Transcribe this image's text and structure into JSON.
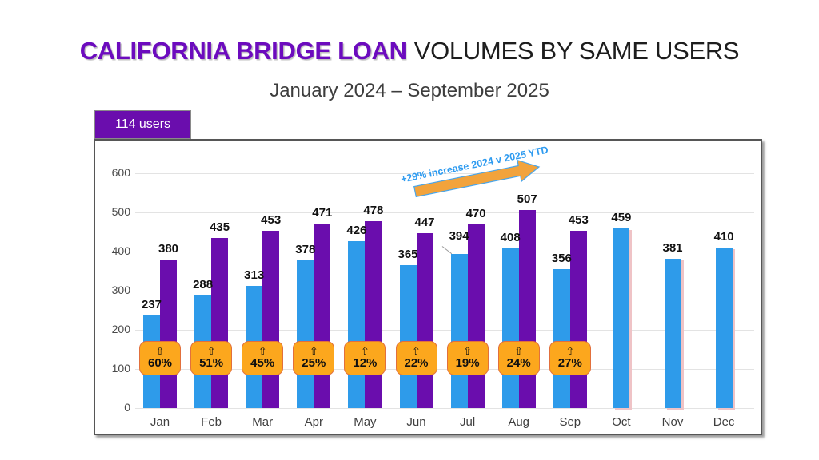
{
  "header": {
    "title_highlight": "CALIFORNIA BRIDGE LOAN",
    "title_rest": "VOLUMES BY SAME USERS",
    "subtitle": "January 2024 – September 2025",
    "users_badge": "114 users"
  },
  "annotation": {
    "text": "+29% increase 2024 v 2025 YTD"
  },
  "icons": {
    "up_arrow": "⇧"
  },
  "colors": {
    "title_purple": "#6C0BBE",
    "bar_blue": "#2E9BEA",
    "bar_purple": "#6A0DAD",
    "badge_purple": "#6A0DAD",
    "pct_badge_fill": "#FCA71D",
    "pct_badge_border": "#E2703C",
    "annotation_blue": "#2E9BF0",
    "arrow_fill": "#F2A33C",
    "arrow_outline": "#4DA6E8",
    "bar_shadow_pink": "#EFC3C6"
  },
  "chart_data": {
    "type": "bar",
    "title": "California bridge loan volumes by same users",
    "categories": [
      "Jan",
      "Feb",
      "Mar",
      "Apr",
      "May",
      "Jun",
      "Jul",
      "Aug",
      "Sep",
      "Oct",
      "Nov",
      "Dec"
    ],
    "series": [
      {
        "name": "2024",
        "color_key": "bar_blue",
        "values": [
          237,
          288,
          313,
          378,
          426,
          365,
          394,
          408,
          356,
          459,
          381,
          410
        ]
      },
      {
        "name": "2025",
        "color_key": "bar_purple",
        "values": [
          380,
          435,
          453,
          471,
          478,
          447,
          470,
          507,
          453,
          null,
          null,
          null
        ]
      }
    ],
    "pct_increase_labels": [
      "60%",
      "51%",
      "45%",
      "25%",
      "12%",
      "22%",
      "19%",
      "24%",
      "27%",
      null,
      null,
      null
    ],
    "xlabel": "",
    "ylabel": "",
    "ylim": [
      0,
      600
    ],
    "yticks": [
      0,
      100,
      200,
      300,
      400,
      500,
      600
    ],
    "grid": true,
    "legend": "none",
    "annotation": "+29% increase 2024 v 2025 YTD",
    "users_count": "114 users"
  }
}
